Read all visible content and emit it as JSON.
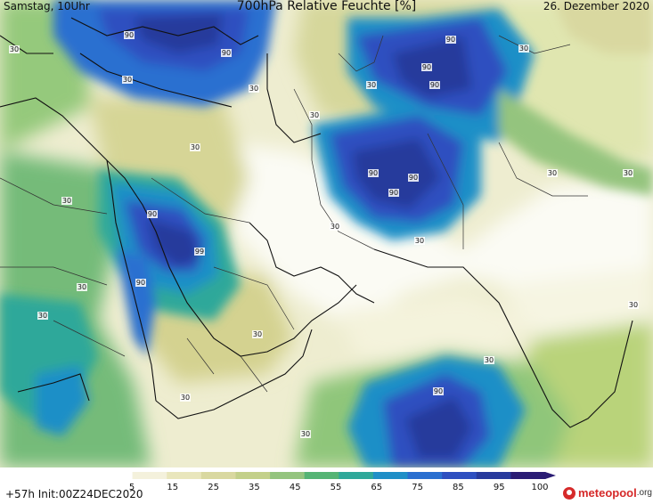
{
  "header": {
    "left": "Samstag, 10Uhr",
    "title": "700hPa Relative Feuchte [%]",
    "right": "26. Dezember 2020"
  },
  "footer": {
    "run_info": "+57h Init:00Z24DEC2020",
    "logo_name": "meteopool",
    "logo_suffix": ".org"
  },
  "legend": {
    "ticks": [
      "5",
      "15",
      "25",
      "35",
      "45",
      "55",
      "65",
      "75",
      "85",
      "95",
      "100"
    ],
    "colors": [
      "#ffffff",
      "#f4f1dc",
      "#e9e6bc",
      "#d9d8a0",
      "#c3d08a",
      "#94c47e",
      "#55b474",
      "#2fa89a",
      "#1f8fc7",
      "#2a6fd0",
      "#2e4fc0",
      "#283a9c",
      "#2a1c74"
    ]
  },
  "map": {
    "contour_labels": [
      "90",
      "90",
      "30",
      "30",
      "30",
      "90",
      "90",
      "90",
      "30",
      "30",
      "30",
      "90",
      "90",
      "90",
      "30",
      "30",
      "30",
      "30",
      "30",
      "90",
      "99",
      "90",
      "30",
      "30",
      "30",
      "30",
      "30",
      "90",
      "30",
      "30",
      "30"
    ]
  }
}
